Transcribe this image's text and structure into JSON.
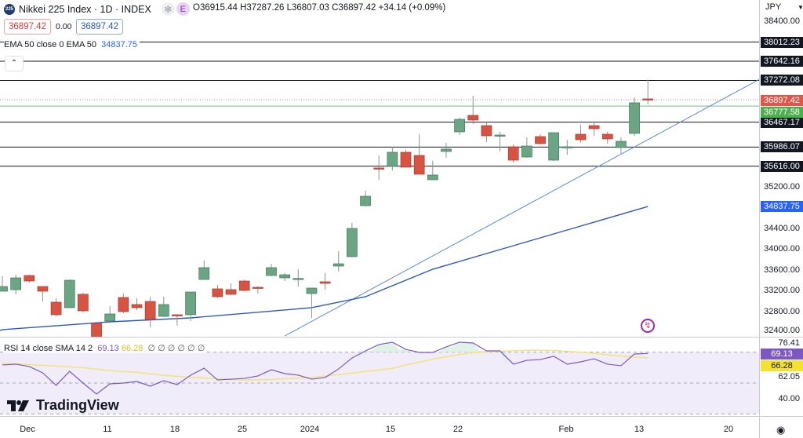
{
  "header": {
    "symbol_icon": "225",
    "title": "Nikkei 225 Index · 1D · INDEX",
    "badges": [
      "✻",
      "E"
    ],
    "ohlc": "O36915.44 H37287.26 L36807.03 C36897.42 +34.14 (+0.09%)",
    "sell_price": "36897.42",
    "spread": "0.00",
    "buy_price": "36897.42"
  },
  "ema_legend": {
    "label": "EMA 50 close 0 EMA 50",
    "value": "34837.75"
  },
  "rsi_legend": {
    "label": "RSI 14 close SMA 14 2",
    "rsi_value": "69.13",
    "sma_value": "66.28",
    "extras": "∅ ∅ ∅ ∅ ∅ ∅"
  },
  "currency": "JPY",
  "colors": {
    "up": "#6ba583",
    "down": "#d75442",
    "ema": "#2962ff",
    "rsi": "#7e57c2",
    "rsi_sma": "#f5e27a",
    "level": "#131722",
    "current": "#f23645",
    "green_level": "#4caf50"
  },
  "chart_data": [
    {
      "type": "candlestick",
      "title": "Nikkei 225 Index · 1D · INDEX",
      "ylim": [
        32400,
        38600
      ],
      "y_ticks": [
        "38400.00",
        "35200.00",
        "34400.00",
        "34000.00",
        "33600.00",
        "33200.00",
        "32800.00",
        "32400.00"
      ],
      "x_ticks": [
        "Dec",
        "11",
        "18",
        "25",
        "2024",
        "15",
        "22",
        "Feb",
        "13",
        "20"
      ],
      "candles": [
        {
          "date": "Nov 29",
          "o": 33203,
          "h": 33491,
          "l": 33203,
          "c": 33294
        },
        {
          "date": "Nov 30",
          "o": 33233,
          "h": 33521,
          "l": 33143,
          "c": 33461
        },
        {
          "date": "Dec 1",
          "o": 33506,
          "h": 33521,
          "l": 33370,
          "c": 33400
        },
        {
          "date": "Dec 4",
          "o": 33294,
          "h": 33294,
          "l": 33006,
          "c": 33203
        },
        {
          "date": "Dec 5",
          "o": 32991,
          "h": 33067,
          "l": 32718,
          "c": 32749
        },
        {
          "date": "Dec 6",
          "o": 32885,
          "h": 33430,
          "l": 32885,
          "c": 33415
        },
        {
          "date": "Dec 7",
          "o": 33143,
          "h": 33173,
          "l": 32794,
          "c": 32824
        },
        {
          "date": "Dec 8",
          "o": 32582,
          "h": 32612,
          "l": 32279,
          "c": 32309
        },
        {
          "date": "Dec 11",
          "o": 32627,
          "h": 32915,
          "l": 32612,
          "c": 32764
        },
        {
          "date": "Dec 12",
          "o": 33082,
          "h": 33158,
          "l": 32779,
          "c": 32809
        },
        {
          "date": "Dec 13",
          "o": 32946,
          "h": 33067,
          "l": 32840,
          "c": 32885
        },
        {
          "date": "Dec 14",
          "o": 33006,
          "h": 33097,
          "l": 32506,
          "c": 32657
        },
        {
          "date": "Dec 15",
          "o": 32718,
          "h": 33097,
          "l": 32703,
          "c": 32946
        },
        {
          "date": "Dec 18",
          "o": 32749,
          "h": 32760,
          "l": 32536,
          "c": 32733
        },
        {
          "date": "Dec 19",
          "o": 32749,
          "h": 33188,
          "l": 32627,
          "c": 33188
        },
        {
          "date": "Dec 20",
          "o": 33430,
          "h": 33794,
          "l": 33430,
          "c": 33658
        },
        {
          "date": "Dec 21",
          "o": 33249,
          "h": 33324,
          "l": 33067,
          "c": 33097
        },
        {
          "date": "Dec 22",
          "o": 33233,
          "h": 33355,
          "l": 33127,
          "c": 33143
        },
        {
          "date": "Dec 25",
          "o": 33400,
          "h": 33430,
          "l": 33203,
          "c": 33218
        },
        {
          "date": "Dec 26",
          "o": 33279,
          "h": 33294,
          "l": 33158,
          "c": 33264
        },
        {
          "date": "Dec 27",
          "o": 33506,
          "h": 33733,
          "l": 33491,
          "c": 33658
        },
        {
          "date": "Dec 28",
          "o": 33461,
          "h": 33552,
          "l": 33400,
          "c": 33521
        },
        {
          "date": "Dec 29",
          "o": 33446,
          "h": 33627,
          "l": 33294,
          "c": 33450
        },
        {
          "date": "Jan 4",
          "o": 33158,
          "h": 33264,
          "l": 32688,
          "c": 33264
        },
        {
          "date": "Jan 5",
          "o": 33385,
          "h": 33552,
          "l": 33233,
          "c": 33355
        },
        {
          "date": "Jan 9",
          "o": 33688,
          "h": 33976,
          "l": 33582,
          "c": 33733
        },
        {
          "date": "Jan 10",
          "o": 33870,
          "h": 34522,
          "l": 33870,
          "c": 34415
        },
        {
          "date": "Jan 11",
          "o": 34855,
          "h": 35143,
          "l": 34840,
          "c": 35036
        },
        {
          "date": "Jan 12",
          "o": 35582,
          "h": 35824,
          "l": 35355,
          "c": 35567
        },
        {
          "date": "Jan 15",
          "o": 35612,
          "h": 35991,
          "l": 35536,
          "c": 35885
        },
        {
          "date": "Jan 16",
          "o": 35885,
          "h": 35930,
          "l": 35597,
          "c": 35597
        },
        {
          "date": "Jan 17",
          "o": 35824,
          "h": 36233,
          "l": 35461,
          "c": 35461
        },
        {
          "date": "Jan 18",
          "o": 35355,
          "h": 35718,
          "l": 35355,
          "c": 35446
        },
        {
          "date": "Jan 19",
          "o": 35900,
          "h": 36067,
          "l": 35779,
          "c": 35946
        },
        {
          "date": "Jan 22",
          "o": 36279,
          "h": 36552,
          "l": 36218,
          "c": 36521
        },
        {
          "date": "Jan 23",
          "o": 36597,
          "h": 36976,
          "l": 36430,
          "c": 36506
        },
        {
          "date": "Jan 24",
          "o": 36400,
          "h": 36461,
          "l": 36082,
          "c": 36203
        },
        {
          "date": "Jan 25",
          "o": 36203,
          "h": 36279,
          "l": 35900,
          "c": 36218
        },
        {
          "date": "Jan 26",
          "o": 35991,
          "h": 36036,
          "l": 35688,
          "c": 35733
        },
        {
          "date": "Jan 29",
          "o": 35794,
          "h": 36173,
          "l": 35779,
          "c": 36006
        },
        {
          "date": "Jan 30",
          "o": 36188,
          "h": 36233,
          "l": 36036,
          "c": 36052
        },
        {
          "date": "Jan 31",
          "o": 35733,
          "h": 36264,
          "l": 35718,
          "c": 36264
        },
        {
          "date": "Feb 1",
          "o": 35976,
          "h": 36127,
          "l": 35840,
          "c": 35991
        },
        {
          "date": "Feb 2",
          "o": 36233,
          "h": 36415,
          "l": 36067,
          "c": 36127
        },
        {
          "date": "Feb 5",
          "o": 36400,
          "h": 36446,
          "l": 36203,
          "c": 36340
        },
        {
          "date": "Feb 6",
          "o": 36233,
          "h": 36279,
          "l": 36052,
          "c": 36143
        },
        {
          "date": "Feb 7",
          "o": 35976,
          "h": 36173,
          "l": 35840,
          "c": 36097
        },
        {
          "date": "Feb 8",
          "o": 36249,
          "h": 36945,
          "l": 36203,
          "c": 36840
        },
        {
          "date": "Feb 9",
          "o": 36915.44,
          "h": 37287.26,
          "l": 36807.03,
          "c": 36897.42
        }
      ],
      "ema50": [
        {
          "date": "Nov 29",
          "value": 32461
        },
        {
          "date": "Dec 11",
          "value": 32612
        },
        {
          "date": "Dec 19",
          "value": 32688
        },
        {
          "date": "Jan 4",
          "value": 32885
        },
        {
          "date": "Jan 11",
          "value": 33097
        },
        {
          "date": "Jan 18",
          "value": 33627
        },
        {
          "date": "Jan 25",
          "value": 34006
        },
        {
          "date": "Feb 1",
          "value": 34385
        },
        {
          "date": "Feb 9",
          "value": 34837.75
        }
      ],
      "levels": [
        {
          "price": 38012.23,
          "label": "38012.23"
        },
        {
          "price": 37642.16,
          "label": "37642.16"
        },
        {
          "price": 37272.08,
          "label": "37272.08"
        },
        {
          "price": 36467.17,
          "label": "36467.17"
        },
        {
          "price": 35986.07,
          "label": "35986.07"
        },
        {
          "price": 35616.0,
          "label": "35616.00"
        }
      ],
      "current_price": {
        "price": 36897.42,
        "label": "36897.42"
      },
      "green_level": {
        "price": 36777.58,
        "label": "36777.58"
      },
      "ema_tag": {
        "price": 34837.75,
        "label": "34837.75"
      },
      "trendline": {
        "from_date": "Dec 28",
        "from_price": 32340,
        "to_price": 37290
      }
    },
    {
      "type": "line",
      "title": "RSI 14 close SMA 14 2",
      "ylim": [
        25,
        80
      ],
      "bands": [
        70,
        50,
        30
      ],
      "y_ticks": [
        "76.41",
        "62.05",
        "40.00"
      ],
      "series": [
        {
          "name": "RSI",
          "values": [
            61.7,
            62.2,
            60.7,
            56.6,
            48.5,
            57.6,
            50.0,
            42.9,
            49.5,
            50.0,
            51.0,
            48.0,
            51.5,
            49.0,
            55.1,
            59.6,
            52.0,
            52.5,
            53.0,
            54.6,
            58.6,
            56.1,
            55.1,
            52.5,
            53.6,
            59.1,
            66.2,
            70.8,
            74.9,
            76.4,
            71.8,
            69.8,
            69.8,
            73.4,
            76.4,
            75.9,
            70.8,
            70.8,
            62.2,
            64.7,
            65.2,
            67.3,
            62.2,
            63.7,
            65.7,
            62.2,
            61.2,
            68.8,
            69.13
          ]
        },
        {
          "name": "SMA",
          "values": [
            62.7,
            62.5,
            62.0,
            61.5,
            61.0,
            60.5,
            60.0,
            59.0,
            58.0,
            57.5,
            57.0,
            56.0,
            55.0,
            54.3,
            53.8,
            53.3,
            52.8,
            52.3,
            52.0,
            52.0,
            52.3,
            52.8,
            53.2,
            53.6,
            54.5,
            55.5,
            56.5,
            57.5,
            58.5,
            59.5,
            61.7,
            63.5,
            65.5,
            67.0,
            68.5,
            69.7,
            70.3,
            70.6,
            70.9,
            71.1,
            71.2,
            71.0,
            70.5,
            70.0,
            69.2,
            68.3,
            67.5,
            66.8,
            66.28
          ]
        }
      ],
      "rsi_tag": "69.13",
      "sma_tag": "66.28"
    }
  ],
  "branding": "TradingView"
}
